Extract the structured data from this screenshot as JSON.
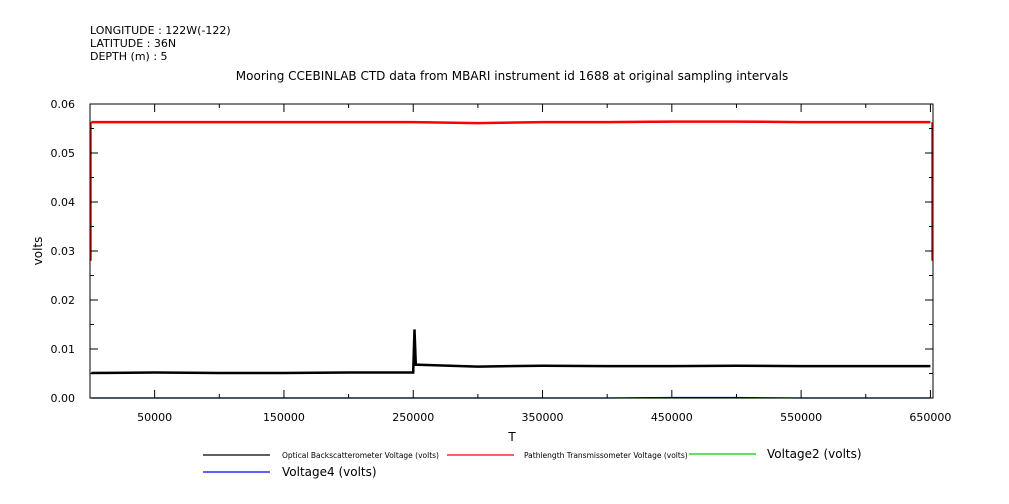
{
  "header": {
    "longitude": "LONGITUDE : 122W(-122)",
    "latitude": "LATITUDE : 36N",
    "depth": "DEPTH (m) : 5"
  },
  "chart_data": {
    "type": "line",
    "title": "Mooring CCEBINLAB CTD data from MBARI instrument id 1688 at original sampling intervals",
    "xlabel": "T",
    "ylabel": "volts",
    "xlim": [
      0,
      652000
    ],
    "ylim": [
      0.0,
      0.06
    ],
    "x_ticks": [
      50000,
      150000,
      250000,
      350000,
      450000,
      550000,
      650000
    ],
    "x_tick_labels": [
      "50000",
      "150000",
      "250000",
      "350000",
      "450000",
      "550000",
      "650000"
    ],
    "y_ticks": [
      0.0,
      0.01,
      0.02,
      0.03,
      0.04,
      0.05,
      0.06
    ],
    "y_tick_labels": [
      "0.00",
      "0.01",
      "0.02",
      "0.03",
      "0.04",
      "0.05",
      "0.06"
    ],
    "grid": false,
    "legend_position": "bottom",
    "series": [
      {
        "name": "Optical Backscatterometer Voltage (volts)",
        "color": "#000000",
        "x": [
          1000,
          50000,
          100000,
          150000,
          200000,
          250000,
          251000,
          252000,
          254000,
          300000,
          350000,
          400000,
          450000,
          500000,
          550000,
          600000,
          650000
        ],
        "y": [
          0.0051,
          0.0052,
          0.0051,
          0.0051,
          0.0052,
          0.0052,
          0.014,
          0.0068,
          0.0068,
          0.0064,
          0.0066,
          0.0065,
          0.0065,
          0.0066,
          0.0065,
          0.0065,
          0.0065
        ]
      },
      {
        "name": "Pathlength Transmissometer Voltage (volts)",
        "color": "#ff0000",
        "x": [
          1000,
          50000,
          100000,
          150000,
          200000,
          250000,
          300000,
          350000,
          400000,
          450000,
          500000,
          550000,
          600000,
          650000
        ],
        "y": [
          0.0563,
          0.0563,
          0.0563,
          0.0563,
          0.0563,
          0.0563,
          0.0561,
          0.0563,
          0.0563,
          0.0564,
          0.0564,
          0.0563,
          0.0563,
          0.0563
        ]
      },
      {
        "name": "Voltage2 (volts)",
        "color": "#00cc00",
        "x": [
          1000,
          650000
        ],
        "y": [
          0.0,
          0.0
        ]
      },
      {
        "name": "Voltage4 (volts)",
        "color": "#0000ff",
        "x": [
          1000,
          350000,
          400000,
          450000,
          500000,
          550000,
          650000
        ],
        "y": [
          0.0,
          0.0,
          0.0,
          0.0001,
          0.0001,
          0.0,
          0.0
        ]
      }
    ]
  }
}
